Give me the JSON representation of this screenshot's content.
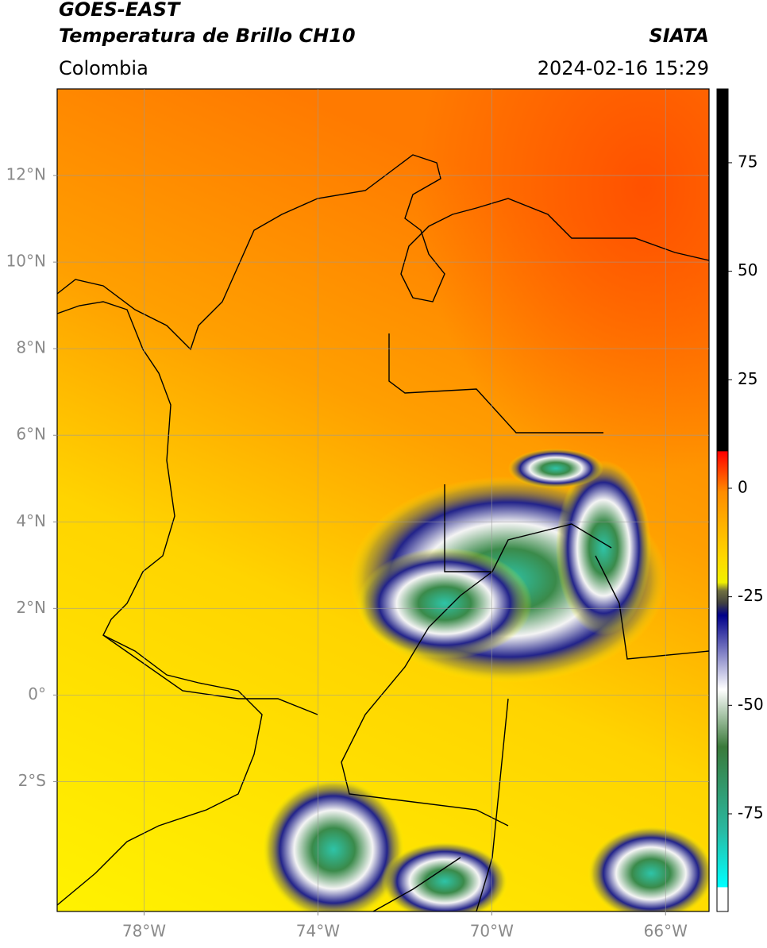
{
  "header": {
    "title": "GOES-EAST",
    "subtitle": "Temperatura de Brillo CH10",
    "source": "SIATA",
    "region": "Colombia",
    "timestamp": "2024-02-16 15:29"
  },
  "map": {
    "xlim": [
      -80,
      -65
    ],
    "ylim": [
      -5,
      14
    ],
    "xticks": [
      {
        "value": -78,
        "label": "78°W"
      },
      {
        "value": -74,
        "label": "74°W"
      },
      {
        "value": -70,
        "label": "70°W"
      },
      {
        "value": -66,
        "label": "66°W"
      }
    ],
    "yticks": [
      {
        "value": 12,
        "label": "12°N"
      },
      {
        "value": 10,
        "label": "10°N"
      },
      {
        "value": 8,
        "label": "8°N"
      },
      {
        "value": 6,
        "label": "6°N"
      },
      {
        "value": 4,
        "label": "4°N"
      },
      {
        "value": 2,
        "label": "2°N"
      },
      {
        "value": 0,
        "label": "0°"
      },
      {
        "value": -2,
        "label": "2°S"
      }
    ],
    "grid": true
  },
  "colorbar": {
    "lim": [
      -97.5,
      92
    ],
    "ticks": [
      75,
      50,
      25,
      0,
      -25,
      -50,
      -75
    ]
  }
}
